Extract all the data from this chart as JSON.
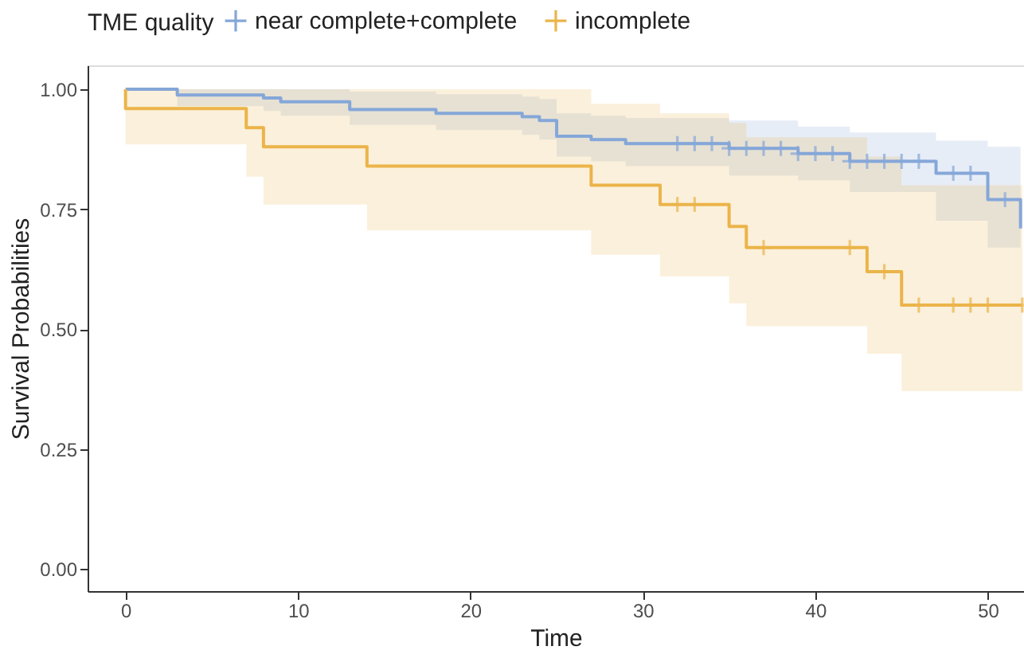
{
  "chart_data": {
    "type": "step",
    "xlabel": "Time",
    "ylabel": "Survival Probabilities",
    "legend_title": "TME quality",
    "legend": "top",
    "grid": false,
    "line_style": "solid",
    "xlim": [
      -2.2,
      52.1
    ],
    "xticks": [
      0,
      10,
      20,
      30,
      40,
      50
    ],
    "ylim": [
      -0.046,
      1.05
    ],
    "yticks": [
      {
        "value": 0,
        "label": "0.00"
      },
      0.25,
      {
        "value": 0.5,
        "label": "0.50"
      },
      0.75,
      {
        "value": 1,
        "label": "1.00"
      }
    ],
    "series": [
      {
        "name": "near complete+complete",
        "color": "#85a7d8",
        "x": [
          0,
          3,
          8,
          9,
          13,
          18,
          23,
          24,
          25,
          27,
          29,
          35,
          39,
          42,
          47,
          50,
          51.9
        ],
        "values": [
          1.0,
          0.988,
          0.982,
          0.974,
          0.958,
          0.95,
          0.943,
          0.935,
          0.902,
          0.895,
          0.887,
          0.877,
          0.866,
          0.85,
          0.825,
          0.77,
          0.71
        ],
        "lower": [
          1.0,
          0.965,
          0.955,
          0.945,
          0.926,
          0.915,
          0.905,
          0.895,
          0.86,
          0.85,
          0.84,
          0.82,
          0.81,
          0.786,
          0.726,
          0.67,
          0.6
        ],
        "upper": [
          1.0,
          1.0,
          1.0,
          1.0,
          0.995,
          0.99,
          0.985,
          0.98,
          0.95,
          0.945,
          0.94,
          0.935,
          0.922,
          0.91,
          0.893,
          0.88,
          0.84
        ]
      },
      {
        "name": "incomplete",
        "color": "#ebb44a",
        "x": [
          0,
          0,
          7,
          8,
          14,
          27,
          31,
          35,
          36,
          43,
          45,
          52
        ],
        "values": [
          1.0,
          0.96,
          0.92,
          0.88,
          0.84,
          0.8,
          0.76,
          0.714,
          0.67,
          0.62,
          0.55,
          0.55
        ],
        "lower": [
          1.0,
          0.885,
          0.818,
          0.76,
          0.706,
          0.655,
          0.61,
          0.554,
          0.506,
          0.449,
          0.371,
          0.371
        ],
        "upper": [
          1.0,
          1.0,
          1.0,
          1.0,
          1.0,
          0.97,
          0.95,
          0.93,
          0.9,
          0.86,
          0.8,
          0.8
        ]
      },
      {
        "type": "scatter",
        "marker": "cross",
        "color": "#85a7d8",
        "x": [
          32,
          33,
          34,
          35,
          36,
          37,
          38,
          39,
          40,
          41,
          42,
          43,
          44,
          45,
          46,
          48,
          49,
          51
        ],
        "values": [
          0.887,
          0.887,
          0.887,
          0.877,
          0.877,
          0.877,
          0.877,
          0.866,
          0.866,
          0.866,
          0.85,
          0.85,
          0.85,
          0.85,
          0.85,
          0.825,
          0.825,
          0.77
        ]
      },
      {
        "type": "scatter",
        "marker": "cross",
        "color": "#ebb44a",
        "x": [
          32,
          33,
          37,
          42,
          44,
          46,
          48,
          49,
          50,
          52
        ],
        "values": [
          0.76,
          0.76,
          0.67,
          0.67,
          0.62,
          0.55,
          0.55,
          0.55,
          0.55,
          0.55
        ]
      }
    ]
  }
}
